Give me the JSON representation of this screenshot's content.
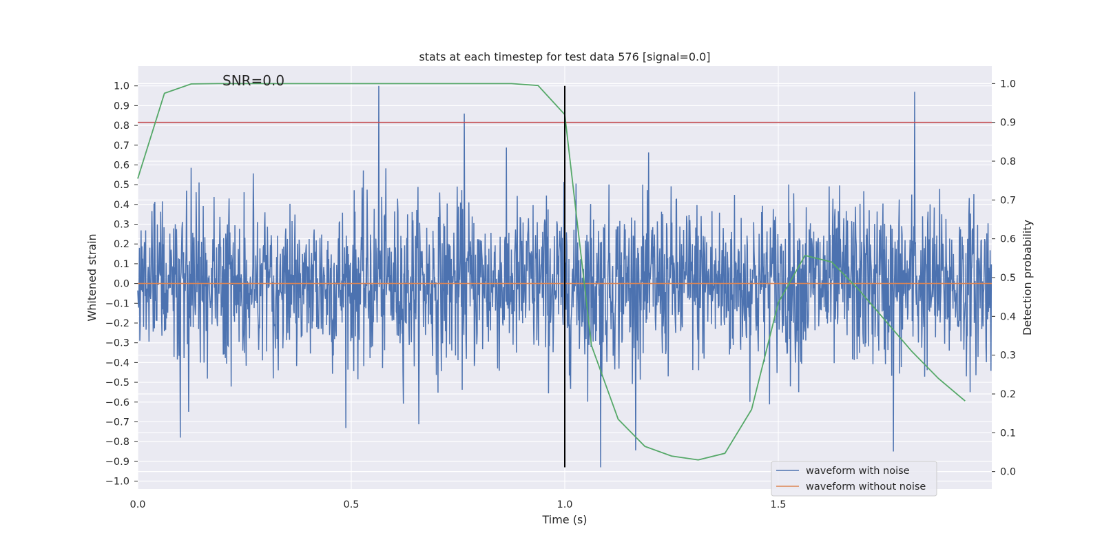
{
  "chart_data": {
    "type": "line",
    "title": "stats at each timestep for test data 576 [signal=0.0]",
    "annotation": "SNR=0.0",
    "xlabel": "Time (s)",
    "ylabel": "Whitened strain",
    "y2label": "Detection probability",
    "xlim": [
      0.0,
      2.0
    ],
    "ylim": [
      -1.04,
      1.1
    ],
    "y2lim": [
      -0.045,
      1.045
    ],
    "xticks": [
      0.0,
      0.5,
      1.0,
      1.5
    ],
    "xtick_labels": [
      "0.0",
      "0.5",
      "1.0",
      "1.5"
    ],
    "yticks": [
      1.0,
      0.9,
      0.8,
      0.7,
      0.6,
      0.5,
      0.4,
      0.3,
      0.2,
      0.1,
      0.0,
      -0.1,
      -0.2,
      -0.3,
      -0.4,
      -0.5,
      -0.6,
      -0.7,
      -0.8,
      -0.9,
      -1.0
    ],
    "ytick_labels": [
      "1.0",
      "0.9",
      "0.8",
      "0.7",
      "0.6",
      "0.5",
      "0.4",
      "0.3",
      "0.2",
      "0.1",
      "0.0",
      "−0.1",
      "−0.2",
      "−0.3",
      "−0.4",
      "−0.5",
      "−0.6",
      "−0.7",
      "−0.8",
      "−0.9",
      "−1.0"
    ],
    "y2ticks": [
      1.0,
      0.9,
      0.8,
      0.7,
      0.6,
      0.5,
      0.4,
      0.3,
      0.2,
      0.1,
      0.0
    ],
    "y2tick_labels": [
      "1.0",
      "0.9",
      "0.8",
      "0.7",
      "0.6",
      "0.5",
      "0.4",
      "0.3",
      "0.2",
      "0.1",
      "0.0"
    ],
    "grid": true,
    "legend_position": "bottom-right",
    "series": [
      {
        "name": "waveform with noise",
        "color": "#4c72b0",
        "axis": "left",
        "description": "dense noisy whitened strain, amplitude roughly -0.93 to 1.0, 2048 samples over 0-2 s",
        "num_samples": 2048,
        "peak_max": 1.0,
        "peak_min": -0.93,
        "notable_peaks": [
          [
            0.565,
            1.0
          ],
          [
            0.765,
            0.86
          ],
          [
            1.085,
            -0.93
          ],
          [
            1.82,
            0.97
          ],
          [
            1.77,
            -0.85
          ],
          [
            0.1,
            -0.78
          ]
        ]
      },
      {
        "name": "waveform without noise",
        "color": "#dd8452",
        "axis": "left",
        "x": [
          0.0,
          2.0
        ],
        "y": [
          0.0,
          0.0
        ]
      },
      {
        "name": "Detection probability",
        "color": "#55a868",
        "axis": "right",
        "x": [
          0.0,
          0.0625,
          0.125,
          0.1875,
          0.25,
          0.3125,
          0.375,
          0.4375,
          0.5,
          0.5625,
          0.625,
          0.6875,
          0.75,
          0.8125,
          0.875,
          0.9375,
          1.0,
          1.0625,
          1.125,
          1.1875,
          1.25,
          1.3125,
          1.375,
          1.4375,
          1.5,
          1.5625,
          1.625,
          1.6875,
          1.75,
          1.8125,
          1.875,
          1.9375
        ],
        "y": [
          0.755,
          0.975,
          0.999,
          1.0,
          1.0,
          1.0,
          1.0,
          1.0,
          1.0,
          1.0,
          1.0,
          1.0,
          1.0,
          1.0,
          1.0,
          0.995,
          0.92,
          0.325,
          0.135,
          0.065,
          0.04,
          0.03,
          0.047,
          0.16,
          0.435,
          0.557,
          0.54,
          0.47,
          0.39,
          0.31,
          0.24,
          0.182
        ]
      }
    ],
    "threshold": {
      "axis": "right",
      "value": 0.9,
      "color": "#c44e52"
    },
    "vline": {
      "x": 1.0,
      "y_from": -0.93,
      "y_to": 1.0,
      "color": "#000000"
    }
  }
}
